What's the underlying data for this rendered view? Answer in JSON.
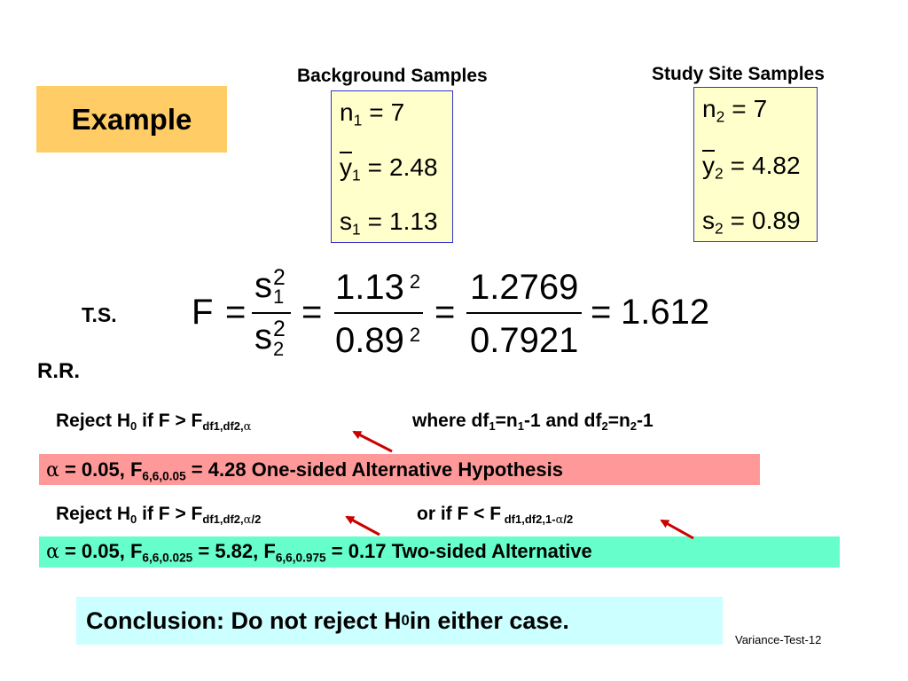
{
  "example_label": "Example",
  "background": {
    "title": "Background Samples",
    "n_sym": "n",
    "n_sub": "1",
    "n_val": "7",
    "y_sym": "y",
    "y_sub": "1",
    "y_val": "2.48",
    "s_sym": "s",
    "s_sub": "1",
    "s_val": "1.13"
  },
  "study": {
    "title": "Study Site Samples",
    "n_sym": "n",
    "n_sub": "2",
    "n_val": "7",
    "y_sym": "y",
    "y_sub": "2",
    "y_val": "4.82",
    "s_sym": "s",
    "s_sub": "2",
    "s_val": "0.89"
  },
  "ts": {
    "label": "T.S.",
    "f": "F",
    "eq": "=",
    "s_sym": "s",
    "s1_sub": "1",
    "s2_sub": "2",
    "sq": "2",
    "num1": "1.13",
    "den1": "0.89",
    "num2": "1.2769",
    "den2": "0.7921",
    "result": "1.612"
  },
  "rr": {
    "label": "R.R.",
    "line1_pre": "Reject H",
    "line1_h_sub": "0",
    "line1_mid": " if F > F",
    "line1_f_sub": "df1,df2,",
    "alpha": "α",
    "line1_where": "where df",
    "df1_sub": "1",
    "eq_n": "=n",
    "n1_sub": "1",
    "and_df": "-1 and df",
    "df2_sub": "2",
    "eq_n2": "=n",
    "n2_sub": "2",
    "tail": "-1",
    "band1_pre": " = 0.05, F",
    "band1_sub": "6,6,0.05",
    "band1_post": " = 4.28  One-sided Alternative Hypothesis",
    "line2_pre": "Reject H",
    "line2_h_sub": "0",
    "line2_mid": " if F > F",
    "line2_f_sub_a": "df1,df2,",
    "half": "/2",
    "line2_or": "or if F < F",
    "line2_or_sub": " df1,df2,1-",
    "band2_pre": " = 0.05, F",
    "band2_sub1": "6,6,0.025",
    "band2_mid": " = 5.82, F",
    "band2_sub2": "6,6,0.975",
    "band2_post": " = 0.17 Two-sided Alternative"
  },
  "conclusion": {
    "pre": "Conclusion: Do not reject H",
    "sub": "0",
    "post": " in either case."
  },
  "slide_number": "Variance-Test-12",
  "colors": {
    "example_bg": "#ffcc66",
    "sample_bg": "#ffffcc",
    "sample_border": "#3333cc",
    "band1_bg": "#ff9999",
    "band2_bg": "#66ffcc",
    "conclusion_bg": "#ccffff",
    "arrow": "#cc0000"
  }
}
